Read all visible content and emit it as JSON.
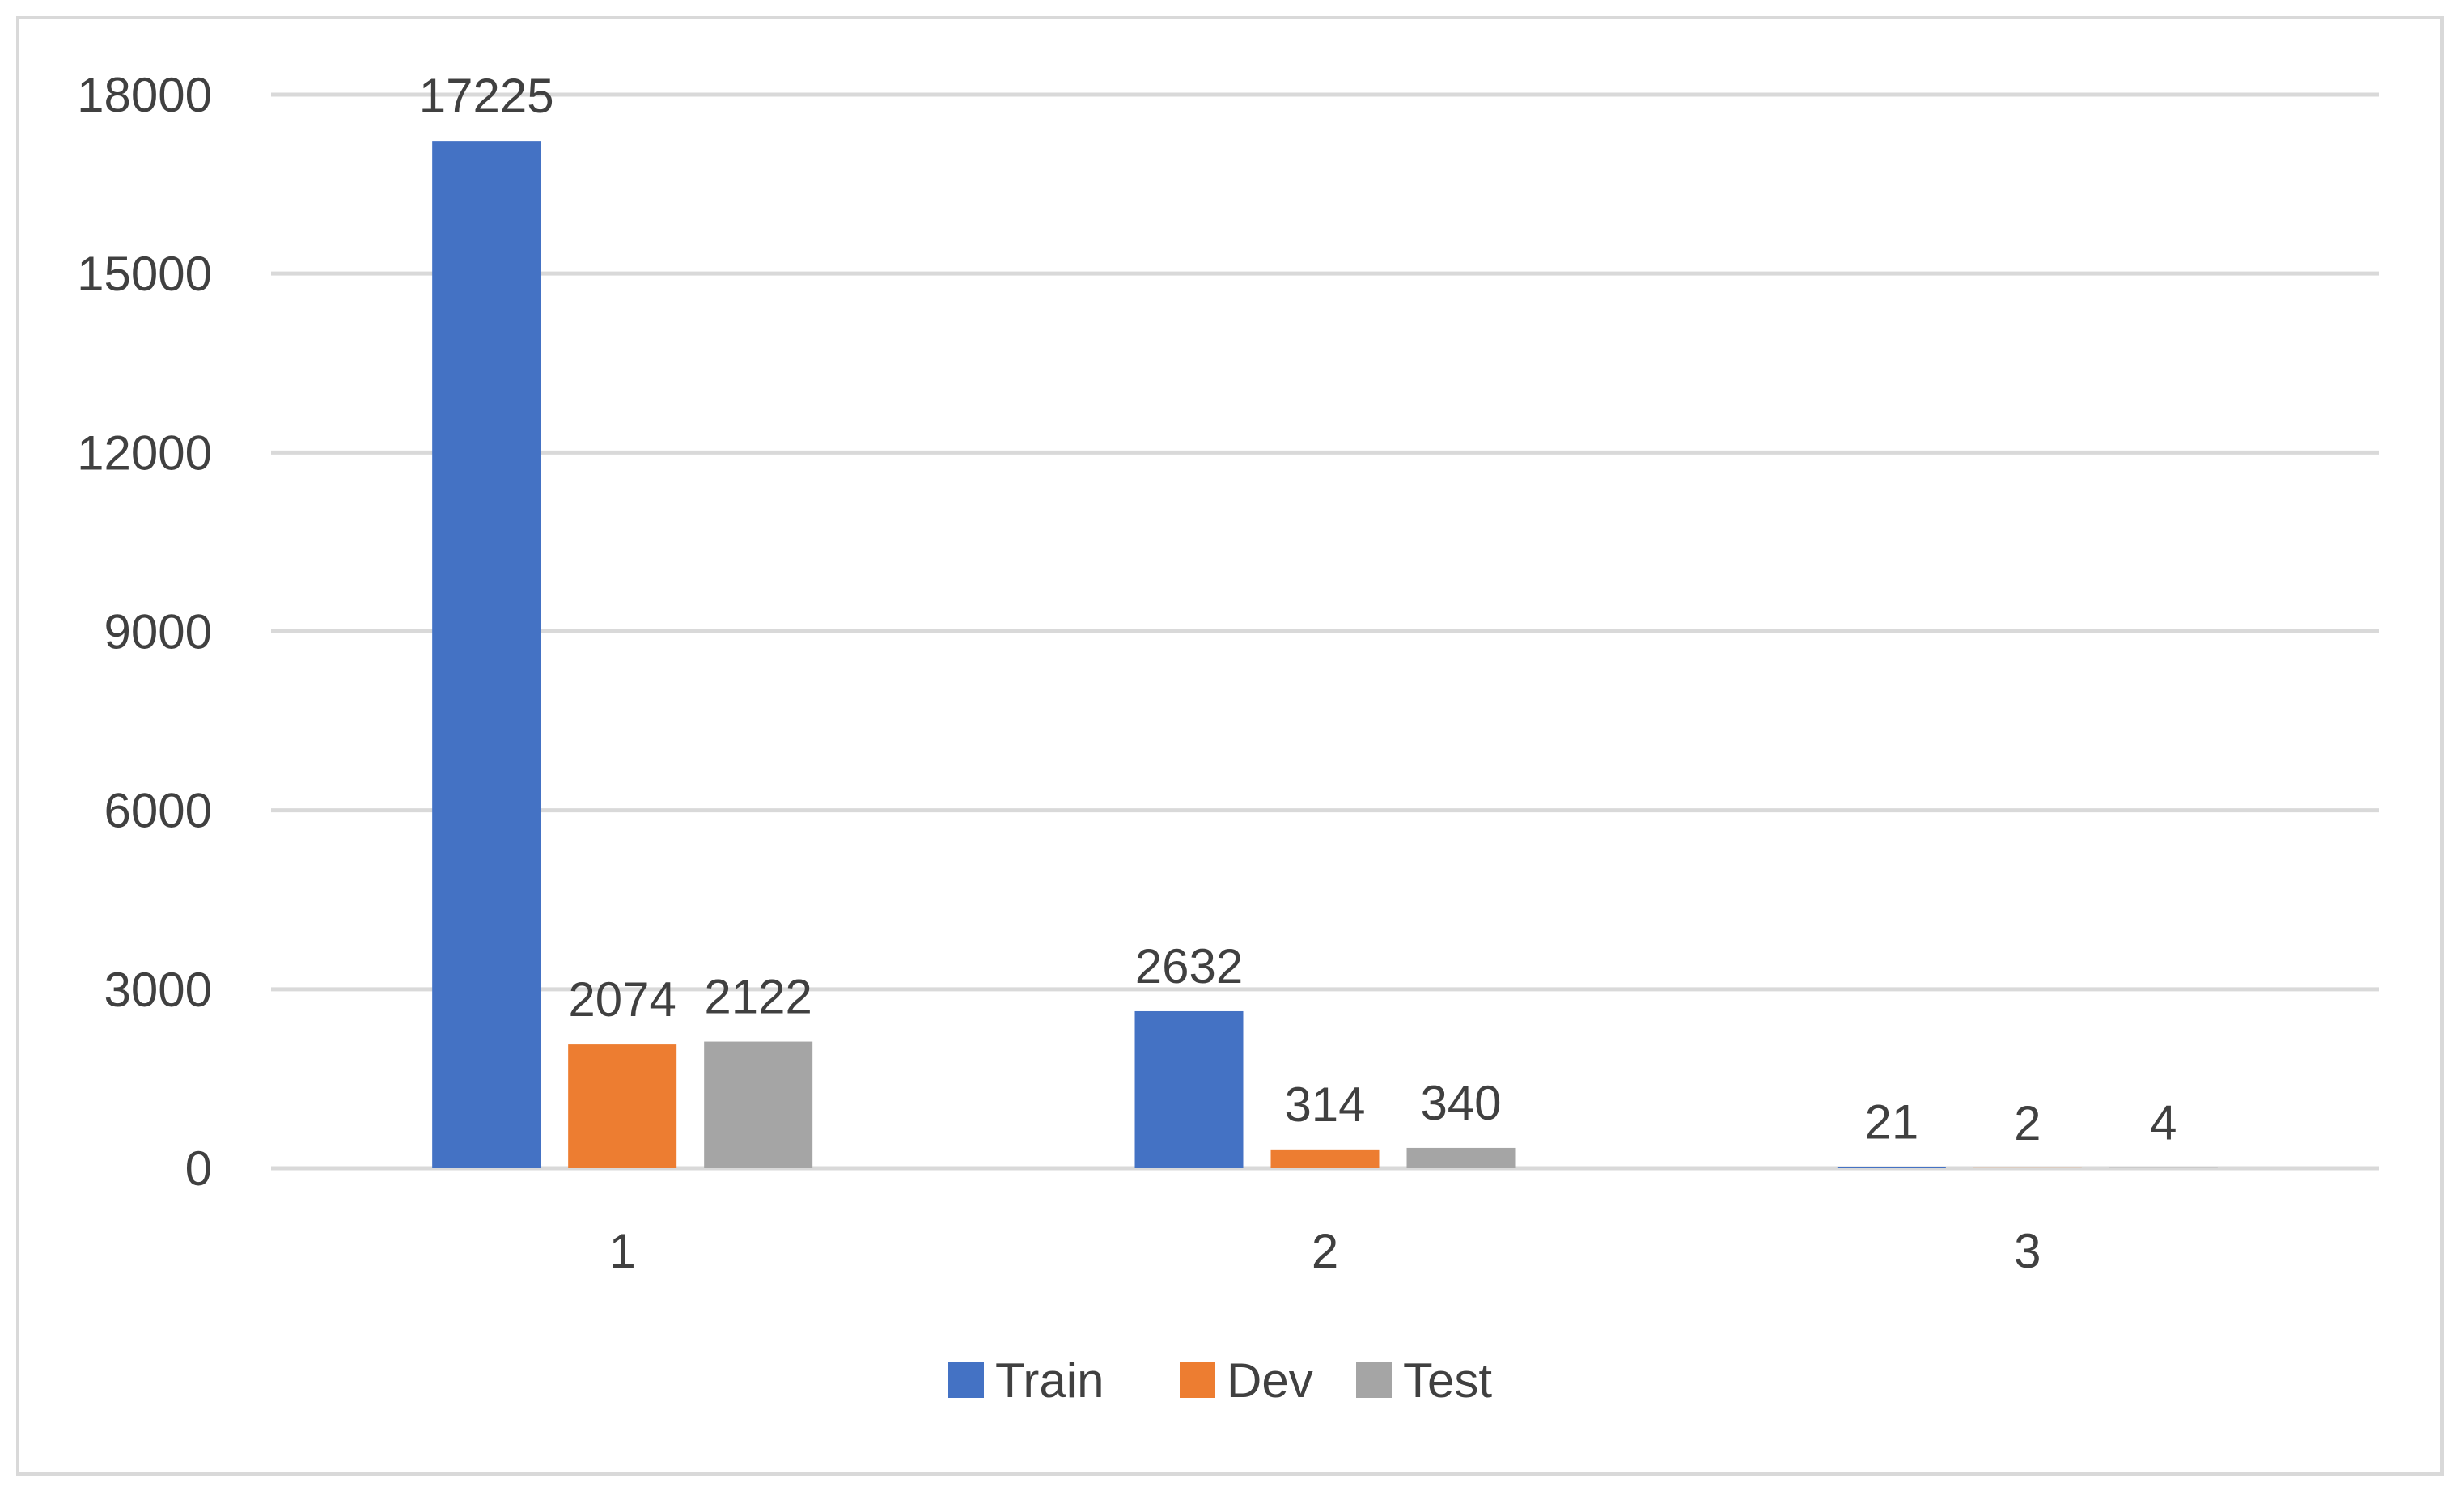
{
  "chart_data": {
    "type": "bar",
    "categories": [
      "1",
      "2",
      "3"
    ],
    "series": [
      {
        "name": "Train",
        "values": [
          17225,
          2632,
          21
        ],
        "color": "#4472c4"
      },
      {
        "name": "Dev",
        "values": [
          2074,
          314,
          2
        ],
        "color": "#ed7d31"
      },
      {
        "name": "Test",
        "values": [
          2122,
          340,
          4
        ],
        "color": "#a5a5a5"
      }
    ],
    "ylim": [
      0,
      18000
    ],
    "yticks": [
      0,
      3000,
      6000,
      9000,
      12000,
      15000,
      18000
    ],
    "grid": true,
    "gridline_color": "#d9d9d9",
    "legend_position": "bottom",
    "data_labels": true
  }
}
